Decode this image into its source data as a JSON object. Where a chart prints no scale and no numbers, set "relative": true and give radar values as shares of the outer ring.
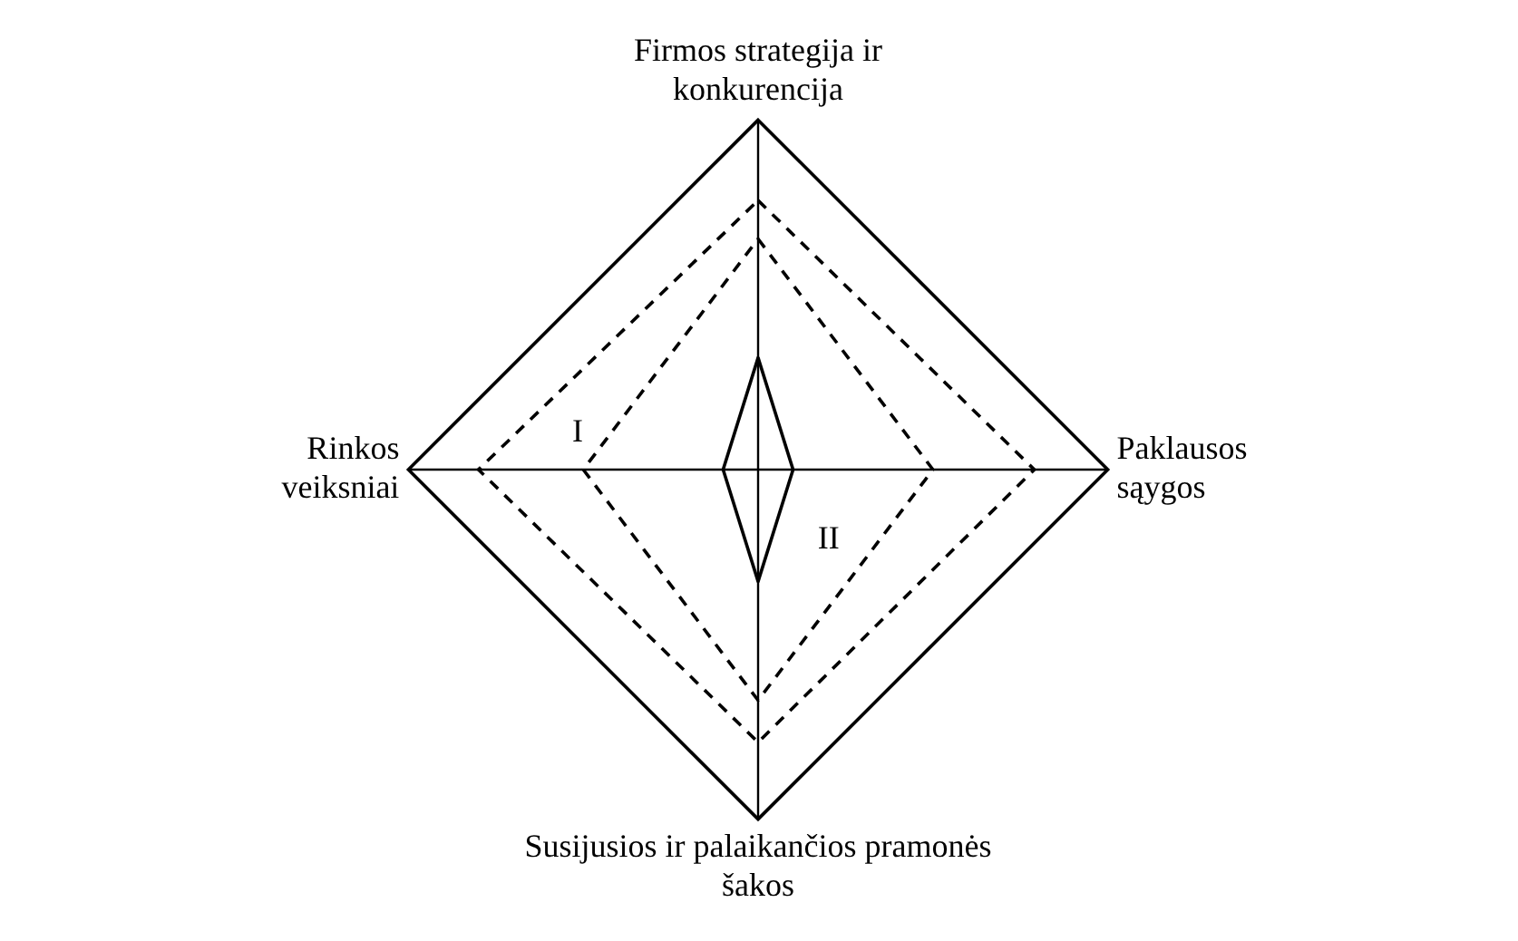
{
  "chart_data": {
    "type": "radar",
    "relative": true,
    "categories": [
      "Firmos strategija ir konkurencija",
      "Paklausos sąygos",
      "Susijusios ir palaikančios pramonės šakos",
      "Rinkos veiksniai"
    ],
    "series": [
      {
        "color": "#000000",
        "line_style": "dashed",
        "values": [
          0.77,
          0.79,
          0.78,
          0.8
        ]
      },
      {
        "color": "#000000",
        "line_style": "dashed",
        "values": [
          0.66,
          0.5,
          0.66,
          0.5
        ]
      },
      {
        "color": "#000000",
        "line_style": "solid",
        "values": [
          0.32,
          0.1,
          0.32,
          0.1
        ]
      }
    ],
    "annotations": [
      "I",
      "II"
    ],
    "legend": false,
    "grid": true
  }
}
